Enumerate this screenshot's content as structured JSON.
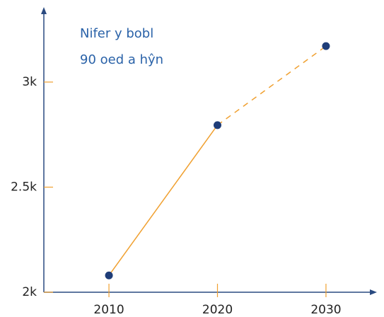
{
  "chart_data": {
    "type": "line",
    "title_lines": [
      "Nifer y bobl",
      "90 oed a hŷn"
    ],
    "x": [
      2010,
      2020,
      2030
    ],
    "values": [
      2080,
      2795,
      3171
    ],
    "segment_styles": [
      "solid",
      "dashed"
    ],
    "line_color": "#f0a030",
    "marker_color": "#1f3d78",
    "xlim": [
      2004,
      2034.5
    ],
    "xticks": [
      2010,
      2020,
      2030
    ],
    "ylim": [
      2000,
      3350
    ],
    "yticks": [
      {
        "value": 2000,
        "label": "2k"
      },
      {
        "value": 2500,
        "label": "2.5k"
      },
      {
        "value": 3000,
        "label": "3k"
      }
    ]
  }
}
